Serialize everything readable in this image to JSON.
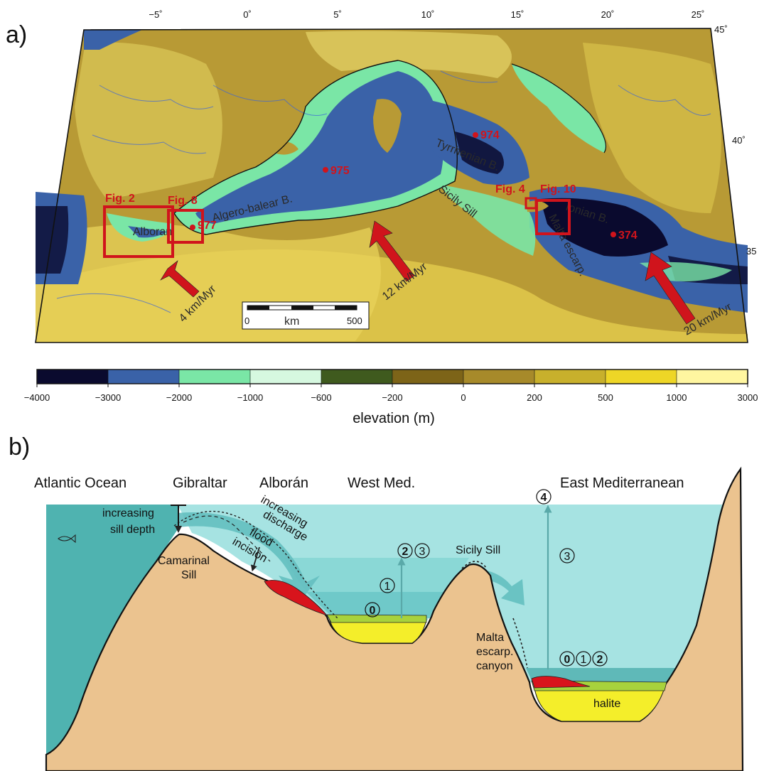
{
  "panel_a": {
    "label": "a)",
    "lon_ticks": [
      "−5˚",
      "0˚",
      "5˚",
      "10˚",
      "15˚",
      "20˚",
      "25˚"
    ],
    "lat_ticks": [
      "45˚",
      "40˚",
      "35"
    ],
    "place_labels": {
      "alboran": "Alboran",
      "algero_balear": "Algero-balear B.",
      "tyrrhenian": "Tyrrhenian B.",
      "sicily_sill": "Sicily Sill",
      "ionian": "Ionian B.",
      "malta_escarp": "Malta escarp."
    },
    "figure_refs": {
      "fig2": "Fig. 2",
      "fig8": "Fig. 8",
      "fig4": "Fig. 4",
      "fig10": "Fig. 10"
    },
    "sites": {
      "s977": "977",
      "s975": "975",
      "s974": "974",
      "s374": "374"
    },
    "arrows": {
      "west": "4 km/Myr",
      "central": "12 km/Myr",
      "east": "20 km/Myr"
    },
    "scale_bar": {
      "unit": "km",
      "start": "0",
      "end": "500"
    },
    "colorbar": {
      "title": "elevation (m)",
      "ticks": [
        "−4000",
        "−3000",
        "−2000",
        "−1000",
        "−600",
        "−200",
        "0",
        "200",
        "500",
        "1000",
        "3000"
      ],
      "colors": [
        "#0a0a2e",
        "#3a62a8",
        "#7ae6a6",
        "#d6f8e0",
        "#3f5a1e",
        "#7d6418",
        "#a78a2a",
        "#c8b02c",
        "#eed626",
        "#fff6a0"
      ]
    }
  },
  "panel_b": {
    "label": "b)",
    "regions": {
      "atlantic": "Atlantic Ocean",
      "gibraltar": "Gibraltar",
      "alboran": "Alborán",
      "west_med": "West Med.",
      "east_med": "East Mediterranean"
    },
    "annotations": {
      "sill_depth_1": "increasing",
      "sill_depth_2": "sill depth",
      "camarinal_1": "Camarinal",
      "camarinal_2": "Sill",
      "discharge_1": "increasing",
      "discharge_2": "discharge",
      "flood_1": "flood",
      "flood_2": "incision",
      "sicily_sill": "Sicily Sill",
      "malta_1": "Malta",
      "malta_2": "escarp.",
      "malta_3": "canyon",
      "halite": "halite"
    },
    "stages": {
      "west_0": "0",
      "west_1": "1",
      "west_2": "2",
      "west_3": "3",
      "east_0": "0",
      "east_1": "1",
      "east_2": "2",
      "east_3": "3",
      "east_4": "4"
    },
    "colors": {
      "atlantic_water": "#4fb3b0",
      "med_water": "#a6e3e2",
      "land": "#ebc38f",
      "halite": "#f4ee2a",
      "gypsum": "#a8d23c",
      "red_deposit": "#d8141c",
      "arrow": "#64bfc0"
    }
  }
}
